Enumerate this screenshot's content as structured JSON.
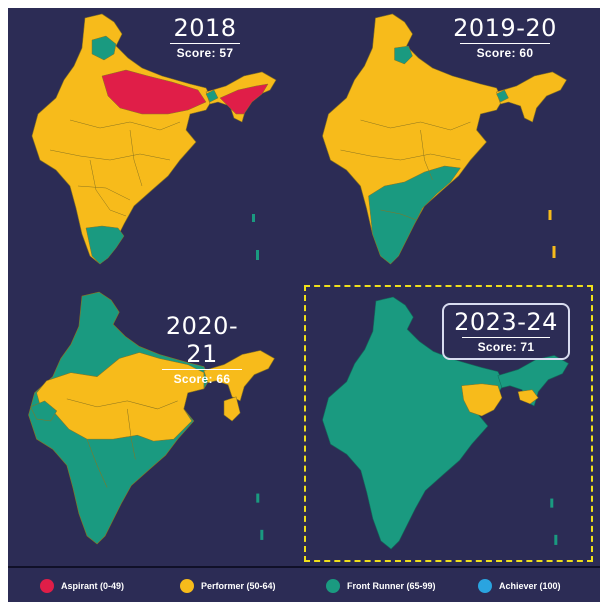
{
  "colors": {
    "background": "#2c2c55",
    "aspirant": "#e01e48",
    "performer": "#f7bb1b",
    "front_runner": "#1a9a80",
    "achiever": "#2aa4e0",
    "border_lines": "#8a7420",
    "highlight_box": "#f0e01a"
  },
  "maps": [
    {
      "year": "2018",
      "score": "Score: 57",
      "legend_classes": [
        "Aspirant",
        "Performer",
        "Front Runner"
      ]
    },
    {
      "year": "2019-20",
      "score": "Score: 60",
      "legend_classes": [
        "Performer",
        "Front Runner"
      ]
    },
    {
      "year": "2020-21",
      "score": "Score: 66",
      "legend_classes": [
        "Performer",
        "Front Runner"
      ]
    },
    {
      "year": "2023-24",
      "score": "Score: 71",
      "legend_classes": [
        "Performer",
        "Front Runner"
      ],
      "highlighted": true
    }
  ],
  "legend": [
    {
      "label": "Aspirant (0-49)",
      "color": "#e01e48"
    },
    {
      "label": "Performer (50-64)",
      "color": "#f7bb1b"
    },
    {
      "label": "Front Runner (65-99)",
      "color": "#1a9a80"
    },
    {
      "label": "Achiever (100)",
      "color": "#2aa4e0"
    }
  ]
}
